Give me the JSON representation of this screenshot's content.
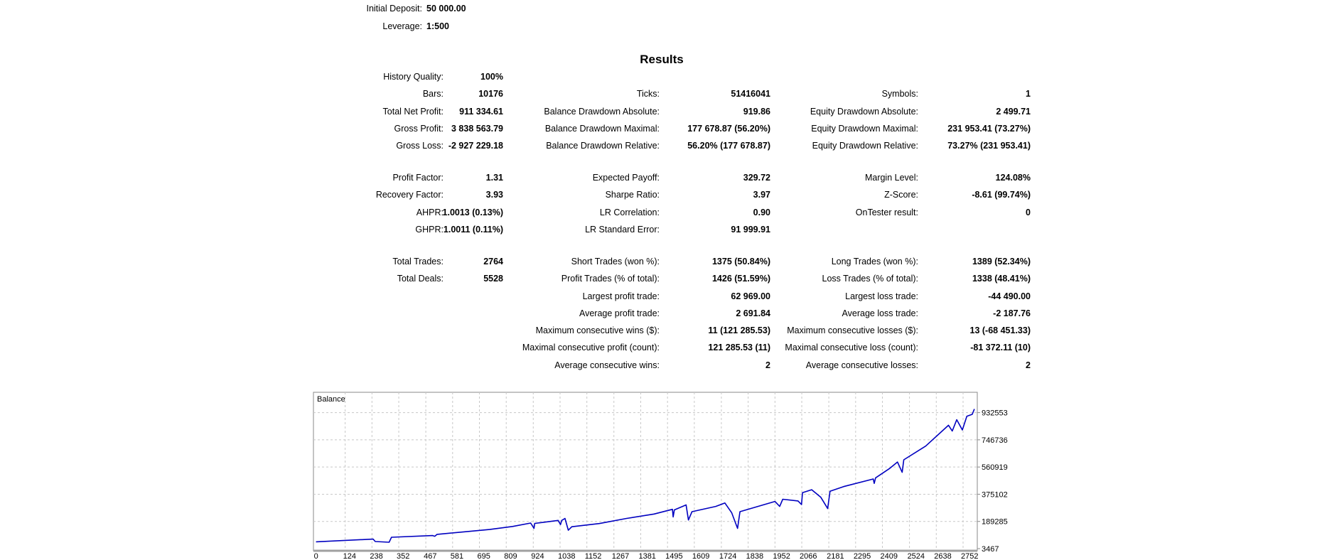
{
  "header": {
    "initial_deposit_label": "Initial Deposit:",
    "initial_deposit_value": "50 000.00",
    "leverage_label": "Leverage:",
    "leverage_value": "1:500"
  },
  "results_title": "Results",
  "rows": [
    [
      {
        "label": "History Quality:",
        "value": "100%"
      },
      null,
      null
    ],
    [
      {
        "label": "Bars:",
        "value": "10176"
      },
      {
        "label": "Ticks:",
        "value": "51416041"
      },
      {
        "label": "Symbols:",
        "value": "1"
      }
    ],
    [
      {
        "label": "Total Net Profit:",
        "value": "911 334.61"
      },
      {
        "label": "Balance Drawdown Absolute:",
        "value": "919.86"
      },
      {
        "label": "Equity Drawdown Absolute:",
        "value": "2 499.71"
      }
    ],
    [
      {
        "label": "Gross Profit:",
        "value": "3 838 563.79"
      },
      {
        "label": "Balance Drawdown Maximal:",
        "value": "177 678.87 (56.20%)"
      },
      {
        "label": "Equity Drawdown Maximal:",
        "value": "231 953.41 (73.27%)"
      }
    ],
    [
      {
        "label": "Gross Loss:",
        "value": "-2 927 229.18"
      },
      {
        "label": "Balance Drawdown Relative:",
        "value": "56.20% (177 678.87)"
      },
      {
        "label": "Equity Drawdown Relative:",
        "value": "73.27% (231 953.41)"
      }
    ],
    [
      {
        "label": "Profit Factor:",
        "value": "1.31"
      },
      {
        "label": "Expected Payoff:",
        "value": "329.72"
      },
      {
        "label": "Margin Level:",
        "value": "124.08%"
      }
    ],
    [
      {
        "label": "Recovery Factor:",
        "value": "3.93"
      },
      {
        "label": "Sharpe Ratio:",
        "value": "3.97"
      },
      {
        "label": "Z-Score:",
        "value": "-8.61 (99.74%)"
      }
    ],
    [
      {
        "label": "AHPR:",
        "value": "1.0013 (0.13%)"
      },
      {
        "label": "LR Correlation:",
        "value": "0.90"
      },
      {
        "label": "OnTester result:",
        "value": "0"
      }
    ],
    [
      {
        "label": "GHPR:",
        "value": "1.0011 (0.11%)"
      },
      {
        "label": "LR Standard Error:",
        "value": "91 999.91"
      },
      null
    ],
    [
      {
        "label": "Total Trades:",
        "value": "2764"
      },
      {
        "label": "Short Trades (won %):",
        "value": "1375 (50.84%)"
      },
      {
        "label": "Long Trades (won %):",
        "value": "1389 (52.34%)"
      }
    ],
    [
      {
        "label": "Total Deals:",
        "value": "5528"
      },
      {
        "label": "Profit Trades (% of total):",
        "value": "1426 (51.59%)"
      },
      {
        "label": "Loss Trades (% of total):",
        "value": "1338 (48.41%)"
      }
    ],
    [
      null,
      {
        "label": "Largest profit trade:",
        "value": "62 969.00"
      },
      {
        "label": "Largest loss trade:",
        "value": "-44 490.00"
      }
    ],
    [
      null,
      {
        "label": "Average profit trade:",
        "value": "2 691.84"
      },
      {
        "label": "Average loss trade:",
        "value": "-2 187.76"
      }
    ],
    [
      null,
      {
        "label": "Maximum consecutive wins ($):",
        "value": "11 (121 285.53)"
      },
      {
        "label": "Maximum consecutive losses ($):",
        "value": "13 (-68 451.33)"
      }
    ],
    [
      null,
      {
        "label": "Maximal consecutive profit (count):",
        "value": "121 285.53 (11)"
      },
      {
        "label": "Maximal consecutive loss (count):",
        "value": "-81 372.11 (10)"
      }
    ],
    [
      null,
      {
        "label": "Average consecutive wins:",
        "value": "2"
      },
      {
        "label": "Average consecutive losses:",
        "value": "2"
      }
    ]
  ],
  "chart_data": {
    "type": "line",
    "title": "Balance",
    "xlabel": "",
    "ylabel": "",
    "xlim": [
      0,
      2822
    ],
    "ylim": [
      3467,
      1068000
    ],
    "grid": true,
    "x_ticks": [
      0,
      124,
      238,
      352,
      467,
      581,
      695,
      809,
      924,
      1038,
      1152,
      1267,
      1381,
      1495,
      1609,
      1724,
      1838,
      1952,
      2066,
      2181,
      2295,
      2409,
      2524,
      2638,
      2752
    ],
    "y_ticks": [
      3467,
      189285,
      375102,
      560919,
      746736,
      932553
    ],
    "color": "#0000c0",
    "series": [
      {
        "name": "Balance",
        "points": [
          [
            0,
            50000
          ],
          [
            243,
            68700
          ],
          [
            252,
            52000
          ],
          [
            311,
            47000
          ],
          [
            321,
            81000
          ],
          [
            496,
            93000
          ],
          [
            505,
            88000
          ],
          [
            515,
            101000
          ],
          [
            738,
            134000
          ],
          [
            836,
            155000
          ],
          [
            913,
            178000
          ],
          [
            927,
            142000
          ],
          [
            930,
            176000
          ],
          [
            1030,
            196000
          ],
          [
            1040,
            168000
          ],
          [
            1045,
            196000
          ],
          [
            1059,
            210000
          ],
          [
            1073,
            129000
          ],
          [
            1088,
            153000
          ],
          [
            1205,
            175000
          ],
          [
            1321,
            210000
          ],
          [
            1438,
            240000
          ],
          [
            1516,
            272000
          ],
          [
            1519,
            220000
          ],
          [
            1524,
            268000
          ],
          [
            1574,
            302000
          ],
          [
            1584,
            199000
          ],
          [
            1599,
            256000
          ],
          [
            1700,
            292000
          ],
          [
            1739,
            315000
          ],
          [
            1768,
            248000
          ],
          [
            1793,
            142000
          ],
          [
            1803,
            256000
          ],
          [
            1952,
            326000
          ],
          [
            1972,
            292000
          ],
          [
            1985,
            341000
          ],
          [
            2050,
            329000
          ],
          [
            2065,
            305000
          ],
          [
            2069,
            386000
          ],
          [
            2108,
            406000
          ],
          [
            2147,
            354000
          ],
          [
            2176,
            277000
          ],
          [
            2186,
            395000
          ],
          [
            2244,
            427000
          ],
          [
            2370,
            479000
          ],
          [
            2374,
            449000
          ],
          [
            2380,
            487000
          ],
          [
            2438,
            549000
          ],
          [
            2473,
            595000
          ],
          [
            2493,
            525000
          ],
          [
            2500,
            610000
          ],
          [
            2593,
            704000
          ],
          [
            2690,
            846000
          ],
          [
            2706,
            807000
          ],
          [
            2725,
            884000
          ],
          [
            2749,
            814000
          ],
          [
            2768,
            908000
          ],
          [
            2791,
            921000
          ],
          [
            2800,
            957000
          ]
        ]
      }
    ]
  }
}
